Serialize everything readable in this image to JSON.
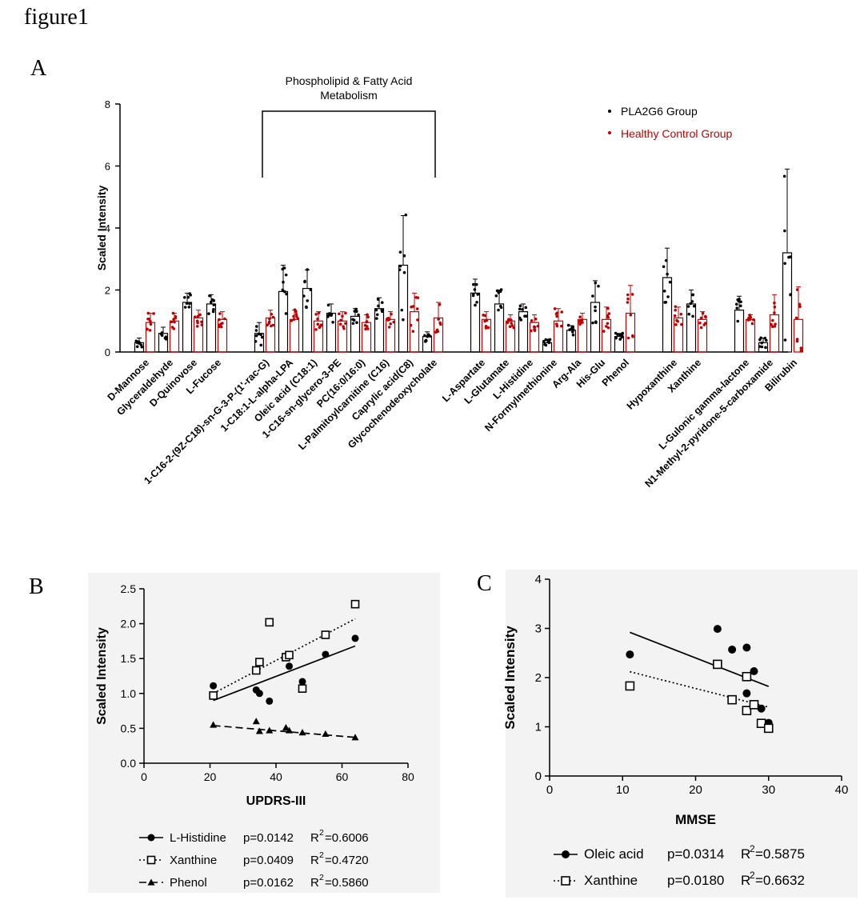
{
  "figure": {
    "title": "figure1",
    "panel_labels": [
      "A",
      "B",
      "C"
    ]
  },
  "colors": {
    "pla2g6": "#000000",
    "control": "#c00000"
  },
  "chart_data": [
    {
      "panel": "A",
      "type": "bar",
      "ylabel": "Scaled Intensity",
      "ylim": [
        0,
        8
      ],
      "yticks": [
        0,
        2,
        4,
        6,
        8
      ],
      "bracket_label": [
        "Phospholipid & Fatty Acid",
        "Metabolism"
      ],
      "bracket_span": [
        "1-C16-2-(9Z-C18)-sn-G-3-P-(1'-rac-G)",
        "Glycochenodeoxycholate"
      ],
      "legend": {
        "position": "top-right",
        "entries": [
          "PLA2G6 Group",
          "Healthy Control Group"
        ]
      },
      "groups": [
        [
          "D-Mannose",
          "Glyceraldehyde",
          "D-Quinovose",
          "L-Fucose"
        ],
        [
          "1-C16-2-(9Z-C18)-sn-G-3-P-(1'-rac-G)",
          "1-C18:1-L-alpha-LPA",
          "Oleic acid (C18:1)",
          "1-C16-sn-glycero-3-PE",
          "PC(16:0/16:0)",
          "L-Palmitoylcarnitine (C16)",
          "Caprylic acid(C8)",
          "Glycochenodeoxycholate"
        ],
        [
          "L-Aspartate",
          "L-Glutamate",
          "L-Histidine",
          "N-Formylmethionine",
          "Arg-Ala",
          "His-Glu",
          "Phenol"
        ],
        [
          "Hypoxanthine",
          "Xanthine"
        ],
        [
          "L-Gulonic gamma-lactone",
          "N1-Methyl-2-pyridone-5-carboxamide",
          "Bilirubin"
        ]
      ],
      "series": [
        {
          "name": "PLA2G6 Group",
          "values": [
            0.3,
            0.6,
            1.6,
            1.55,
            0.6,
            1.95,
            2.05,
            1.25,
            1.15,
            1.4,
            2.8,
            0.5,
            1.9,
            1.55,
            1.3,
            0.3,
            0.7,
            1.6,
            0.5,
            2.4,
            1.55,
            1.35,
            0.3,
            3.2
          ],
          "errors": [
            0.15,
            0.2,
            0.3,
            0.3,
            0.35,
            0.85,
            0.6,
            0.3,
            0.25,
            0.35,
            1.6,
            0.15,
            0.45,
            0.45,
            0.25,
            0.1,
            0.15,
            0.7,
            0.1,
            0.95,
            0.45,
            0.45,
            0.15,
            2.7
          ]
        },
        {
          "name": "Healthy Control Group",
          "values": [
            0.95,
            1.0,
            1.1,
            1.05,
            1.1,
            1.05,
            1.0,
            1.0,
            0.95,
            1.05,
            1.3,
            1.1,
            1.05,
            1.0,
            0.95,
            1.0,
            1.05,
            1.05,
            1.25,
            1.1,
            1.05,
            1.05,
            1.2,
            1.05
          ],
          "errors": [
            0.3,
            0.25,
            0.25,
            0.25,
            0.25,
            0.3,
            0.3,
            0.3,
            0.25,
            0.25,
            0.6,
            0.5,
            0.25,
            0.2,
            0.25,
            0.4,
            0.2,
            0.4,
            0.9,
            0.35,
            0.25,
            0.15,
            0.65,
            1.05
          ]
        }
      ]
    },
    {
      "panel": "B",
      "type": "scatter",
      "xlabel": "UPDRS-III",
      "ylabel": "Scaled Intensity",
      "xlim": [
        0,
        80
      ],
      "ylim": [
        0,
        2.5
      ],
      "xticks": [
        0,
        20,
        40,
        60,
        80
      ],
      "yticks": [
        "0.0",
        "0.5",
        "1.0",
        "1.5",
        "2.0",
        "2.5"
      ],
      "legend": {
        "position": "bottom",
        "entries": [
          {
            "name": "L-Histidine",
            "p": "p=0.0142",
            "r2": "R",
            "r2sup": "2",
            "r2val": "=0.6006",
            "marker": "circle",
            "line": "solid"
          },
          {
            "name": "Xanthine",
            "p": "p=0.0409",
            "r2": "R",
            "r2sup": "2",
            "r2val": "=0.4720",
            "marker": "square",
            "line": "dotted"
          },
          {
            "name": "Phenol",
            "p": "p=0.0162",
            "r2": "R",
            "r2sup": "2",
            "r2val": "=0.5860",
            "marker": "triangle",
            "line": "dashed"
          }
        ]
      },
      "series": [
        {
          "name": "L-Histidine",
          "x": [
            21,
            34,
            35,
            38,
            43,
            44,
            48,
            55,
            64
          ],
          "y": [
            1.11,
            1.05,
            1.0,
            0.89,
            1.53,
            1.39,
            1.17,
            1.56,
            1.79
          ],
          "fit": [
            [
              21,
              0.9
            ],
            [
              64,
              1.68
            ]
          ]
        },
        {
          "name": "Xanthine",
          "x": [
            21,
            34,
            35,
            38,
            43,
            44,
            48,
            55,
            64
          ],
          "y": [
            0.97,
            1.33,
            1.45,
            2.02,
            1.52,
            1.55,
            1.07,
            1.84,
            2.28
          ],
          "fit": [
            [
              21,
              1.0
            ],
            [
              64,
              2.07
            ]
          ]
        },
        {
          "name": "Phenol",
          "x": [
            21,
            34,
            35,
            38,
            43,
            44,
            48,
            55,
            64
          ],
          "y": [
            0.55,
            0.6,
            0.46,
            0.47,
            0.51,
            0.47,
            0.44,
            0.42,
            0.37
          ],
          "fit": [
            [
              21,
              0.54
            ],
            [
              64,
              0.37
            ]
          ]
        }
      ]
    },
    {
      "panel": "C",
      "type": "scatter",
      "xlabel": "MMSE",
      "ylabel": "Scaled Intensity",
      "xlim": [
        0,
        40
      ],
      "ylim": [
        0,
        4
      ],
      "xticks": [
        0,
        10,
        20,
        30,
        40
      ],
      "yticks": [
        "0",
        "1",
        "2",
        "3",
        "4"
      ],
      "legend": {
        "position": "bottom",
        "entries": [
          {
            "name": "Oleic acid",
            "p": "p=0.0314",
            "r2": "R",
            "r2sup": "2",
            "r2val": "=0.5875",
            "marker": "circle",
            "line": "solid"
          },
          {
            "name": "Xanthine",
            "p": "p=0.0180",
            "r2": "R",
            "r2sup": "2",
            "r2val": "=0.6632",
            "marker": "square",
            "line": "dotted"
          }
        ]
      },
      "series": [
        {
          "name": "Oleic acid",
          "x": [
            11,
            23,
            25,
            27,
            27,
            28,
            29,
            30
          ],
          "y": [
            2.47,
            2.99,
            2.57,
            2.61,
            1.68,
            2.13,
            1.37,
            1.08
          ],
          "fit": [
            [
              11,
              2.92
            ],
            [
              30,
              1.82
            ]
          ]
        },
        {
          "name": "Xanthine",
          "x": [
            11,
            23,
            25,
            27,
            27,
            28,
            29,
            30
          ],
          "y": [
            1.83,
            2.27,
            1.55,
            2.02,
            1.33,
            1.45,
            1.07,
            0.97
          ],
          "fit": [
            [
              11,
              2.12
            ],
            [
              30,
              1.4
            ]
          ]
        }
      ]
    }
  ]
}
